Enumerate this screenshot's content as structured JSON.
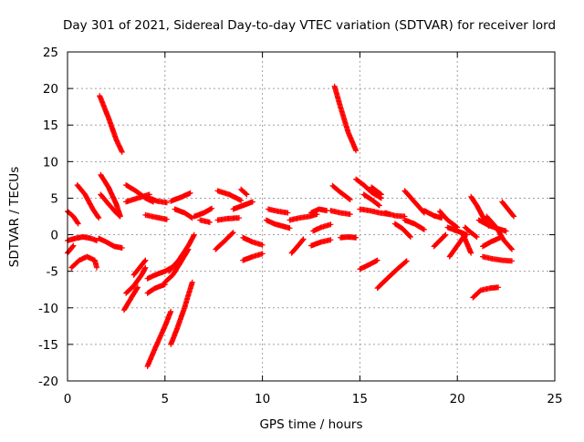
{
  "chart_data": {
    "type": "scatter",
    "title": "Day 301 of 2021, Sidereal Day-to-day VTEC variation (SDTVAR) for receiver lord",
    "xlabel": "GPS time / hours",
    "ylabel": "SDTVAR / TECUs",
    "xlim": [
      0,
      25
    ],
    "ylim": [
      -20,
      25
    ],
    "xticks": [
      "0",
      "5",
      "10",
      "15",
      "20",
      "25"
    ],
    "yticks": [
      "25",
      "20",
      "15",
      "10",
      "5",
      "0",
      "-5",
      "-10",
      "-15",
      "-20"
    ],
    "grid": true,
    "marker": "+",
    "series_color": "#ff0000",
    "tracks": [
      {
        "x": [
          1.65,
          2.1,
          2.5,
          2.8
        ],
        "y": [
          19.0,
          16.0,
          13.0,
          11.3
        ]
      },
      {
        "x": [
          13.7,
          14.0,
          14.4,
          14.8
        ],
        "y": [
          20.3,
          17.5,
          14.0,
          11.5
        ]
      },
      {
        "x": [
          0.5,
          0.9,
          1.3,
          1.6
        ],
        "y": [
          6.8,
          5.5,
          3.5,
          2.3
        ]
      },
      {
        "x": [
          0.0,
          0.3,
          0.55
        ],
        "y": [
          3.2,
          2.5,
          1.5
        ]
      },
      {
        "x": [
          1.7,
          2.1,
          2.5,
          2.7
        ],
        "y": [
          8.2,
          6.5,
          4.2,
          2.6
        ]
      },
      {
        "x": [
          1.7,
          2.1,
          2.5,
          2.7
        ],
        "y": [
          5.5,
          4.2,
          3.0,
          2.5
        ]
      },
      {
        "x": [
          3.0,
          3.5,
          4.0,
          4.4
        ],
        "y": [
          6.8,
          6.0,
          5.0,
          4.5
        ]
      },
      {
        "x": [
          3.0,
          3.6,
          4.2
        ],
        "y": [
          4.5,
          5.0,
          5.5
        ]
      },
      {
        "x": [
          4.2,
          4.6,
          5.1
        ],
        "y": [
          5.0,
          4.6,
          4.4
        ]
      },
      {
        "x": [
          4.0,
          4.5,
          5.1
        ],
        "y": [
          2.7,
          2.4,
          2.1
        ]
      },
      {
        "x": [
          5.3,
          5.8,
          6.3
        ],
        "y": [
          4.6,
          5.1,
          5.7
        ]
      },
      {
        "x": [
          5.5,
          6.0,
          6.4
        ],
        "y": [
          3.5,
          3.0,
          2.3
        ]
      },
      {
        "x": [
          6.5,
          7.0,
          7.4
        ],
        "y": [
          2.5,
          3.0,
          3.6
        ]
      },
      {
        "x": [
          6.8,
          7.3
        ],
        "y": [
          2.0,
          1.7
        ]
      },
      {
        "x": [
          7.7,
          8.3,
          8.9
        ],
        "y": [
          6.0,
          5.5,
          4.7
        ]
      },
      {
        "x": [
          7.7,
          8.2,
          8.8
        ],
        "y": [
          2.0,
          2.2,
          2.3
        ]
      },
      {
        "x": [
          8.5,
          9.0,
          9.5
        ],
        "y": [
          3.5,
          4.0,
          4.5
        ]
      },
      {
        "x": [
          8.9,
          9.2
        ],
        "y": [
          6.2,
          5.5
        ]
      },
      {
        "x": [
          7.6,
          8.0,
          8.5
        ],
        "y": [
          -2.0,
          -1.0,
          0.3
        ]
      },
      {
        "x": [
          9.0,
          9.5,
          10.0
        ],
        "y": [
          -0.4,
          -1.0,
          -1.4
        ]
      },
      {
        "x": [
          9.0,
          9.5,
          10.0
        ],
        "y": [
          -3.5,
          -3.0,
          -2.6
        ]
      },
      {
        "x": [
          10.2,
          10.6,
          11.0,
          11.4
        ],
        "y": [
          2.0,
          1.5,
          1.2,
          0.9
        ]
      },
      {
        "x": [
          10.3,
          10.8,
          11.3
        ],
        "y": [
          3.5,
          3.2,
          3.0
        ]
      },
      {
        "x": [
          11.4,
          11.9,
          12.4,
          12.8
        ],
        "y": [
          2.0,
          2.3,
          2.5,
          2.8
        ]
      },
      {
        "x": [
          11.5,
          11.8,
          12.1
        ],
        "y": [
          -2.5,
          -1.6,
          -0.6
        ]
      },
      {
        "x": [
          12.5,
          12.9,
          13.3
        ],
        "y": [
          3.0,
          3.5,
          3.3
        ]
      },
      {
        "x": [
          12.5,
          13.0,
          13.5
        ],
        "y": [
          -1.5,
          -1.0,
          -0.7
        ]
      },
      {
        "x": [
          12.6,
          13.0,
          13.5
        ],
        "y": [
          0.5,
          1.0,
          1.4
        ]
      },
      {
        "x": [
          13.5,
          14.0,
          14.5
        ],
        "y": [
          3.3,
          3.0,
          2.8
        ]
      },
      {
        "x": [
          14.0,
          14.4,
          14.8
        ],
        "y": [
          -0.4,
          -0.3,
          -0.4
        ]
      },
      {
        "x": [
          13.6,
          14.0,
          14.5
        ],
        "y": [
          6.7,
          5.8,
          4.8
        ]
      },
      {
        "x": [
          14.8,
          15.2,
          15.6,
          16.1
        ],
        "y": [
          7.6,
          6.8,
          5.8,
          5.0
        ]
      },
      {
        "x": [
          15.2,
          15.6,
          16.0
        ],
        "y": [
          5.5,
          4.8,
          4.0
        ]
      },
      {
        "x": [
          15.6,
          16.1
        ],
        "y": [
          6.5,
          5.5
        ]
      },
      {
        "x": [
          15.0,
          15.5,
          16.0,
          16.5
        ],
        "y": [
          3.5,
          3.3,
          3.0,
          2.8
        ]
      },
      {
        "x": [
          15.0,
          15.4,
          15.9
        ],
        "y": [
          -4.7,
          -4.2,
          -3.5
        ]
      },
      {
        "x": [
          15.9,
          16.4,
          17.0,
          17.4
        ],
        "y": [
          -7.3,
          -6.0,
          -4.5,
          -3.6
        ]
      },
      {
        "x": [
          16.3,
          16.8,
          17.3
        ],
        "y": [
          3.0,
          2.6,
          2.5
        ]
      },
      {
        "x": [
          16.8,
          17.2,
          17.6
        ],
        "y": [
          1.5,
          0.8,
          -0.3
        ]
      },
      {
        "x": [
          17.3,
          17.8,
          18.3
        ],
        "y": [
          6.0,
          4.5,
          3.0
        ]
      },
      {
        "x": [
          17.3,
          17.8,
          18.3
        ],
        "y": [
          2.0,
          1.5,
          0.7
        ]
      },
      {
        "x": [
          18.3,
          18.8,
          19.2
        ],
        "y": [
          3.3,
          2.6,
          2.3
        ]
      },
      {
        "x": [
          18.8,
          19.1,
          19.4
        ],
        "y": [
          -1.6,
          -0.8,
          0.0
        ]
      },
      {
        "x": [
          19.1,
          19.5,
          20.0
        ],
        "y": [
          3.2,
          2.0,
          1.0
        ]
      },
      {
        "x": [
          19.5,
          20.0,
          20.5
        ],
        "y": [
          1.0,
          0.5,
          0.0
        ]
      },
      {
        "x": [
          19.6,
          20.0,
          20.4
        ],
        "y": [
          -3.0,
          -1.5,
          0.0
        ]
      },
      {
        "x": [
          20.3,
          20.7
        ],
        "y": [
          0.0,
          -2.5
        ]
      },
      {
        "x": [
          20.4,
          20.7,
          21.0
        ],
        "y": [
          1.0,
          0.3,
          -0.3
        ]
      },
      {
        "x": [
          20.7,
          21.0,
          21.3,
          21.6
        ],
        "y": [
          5.2,
          4.0,
          2.5,
          1.2
        ]
      },
      {
        "x": [
          21.1,
          21.6,
          22.1,
          22.5
        ],
        "y": [
          2.0,
          1.3,
          0.8,
          0.5
        ]
      },
      {
        "x": [
          21.3,
          21.7,
          22.2
        ],
        "y": [
          -1.6,
          -1.0,
          -0.4
        ]
      },
      {
        "x": [
          20.8,
          21.2,
          21.7,
          22.1
        ],
        "y": [
          -8.6,
          -7.6,
          -7.3,
          -7.2
        ]
      },
      {
        "x": [
          21.3,
          21.8,
          22.3,
          22.8
        ],
        "y": [
          -3.0,
          -3.3,
          -3.5,
          -3.6
        ]
      },
      {
        "x": [
          21.5,
          22.0,
          22.4,
          22.8
        ],
        "y": [
          2.5,
          1.0,
          -0.8,
          -2.0
        ]
      },
      {
        "x": [
          22.3,
          22.6,
          22.9
        ],
        "y": [
          4.5,
          3.5,
          2.5
        ]
      },
      {
        "x": [
          0.0,
          0.4,
          0.8,
          1.2,
          1.5
        ],
        "y": [
          -0.8,
          -0.5,
          -0.3,
          -0.5,
          -0.8
        ]
      },
      {
        "x": [
          0.2,
          0.6,
          1.0,
          1.4,
          1.5
        ],
        "y": [
          -4.5,
          -3.5,
          -3.0,
          -3.5,
          -4.5
        ]
      },
      {
        "x": [
          0.0,
          0.3
        ],
        "y": [
          -2.5,
          -1.5
        ]
      },
      {
        "x": [
          1.6,
          2.0,
          2.4,
          2.8
        ],
        "y": [
          -0.5,
          -1.0,
          -1.6,
          -1.8
        ]
      },
      {
        "x": [
          2.9,
          3.3,
          3.6
        ],
        "y": [
          -10.3,
          -8.5,
          -7.2
        ]
      },
      {
        "x": [
          3.0,
          3.4,
          3.8,
          4.0
        ],
        "y": [
          -8.0,
          -7.0,
          -5.5,
          -4.5
        ]
      },
      {
        "x": [
          3.4,
          3.7,
          4.0
        ],
        "y": [
          -5.5,
          -4.5,
          -3.5
        ]
      },
      {
        "x": [
          4.1,
          4.5,
          5.0,
          5.4
        ],
        "y": [
          -6.0,
          -5.5,
          -5.0,
          -4.4
        ]
      },
      {
        "x": [
          4.1,
          4.5,
          5.0
        ],
        "y": [
          -8.0,
          -7.3,
          -6.8
        ]
      },
      {
        "x": [
          4.1,
          4.5,
          5.0,
          5.3
        ],
        "y": [
          -18.0,
          -15.5,
          -12.5,
          -10.5
        ]
      },
      {
        "x": [
          5.0,
          5.4,
          5.8,
          6.2
        ],
        "y": [
          -6.5,
          -5.5,
          -3.8,
          -2.0
        ]
      },
      {
        "x": [
          5.2,
          5.7,
          6.2,
          6.5
        ],
        "y": [
          -5.0,
          -3.5,
          -1.5,
          0.0
        ]
      },
      {
        "x": [
          5.3,
          5.6,
          6.0,
          6.4
        ],
        "y": [
          -15.0,
          -13.0,
          -10.0,
          -6.5
        ]
      }
    ]
  }
}
